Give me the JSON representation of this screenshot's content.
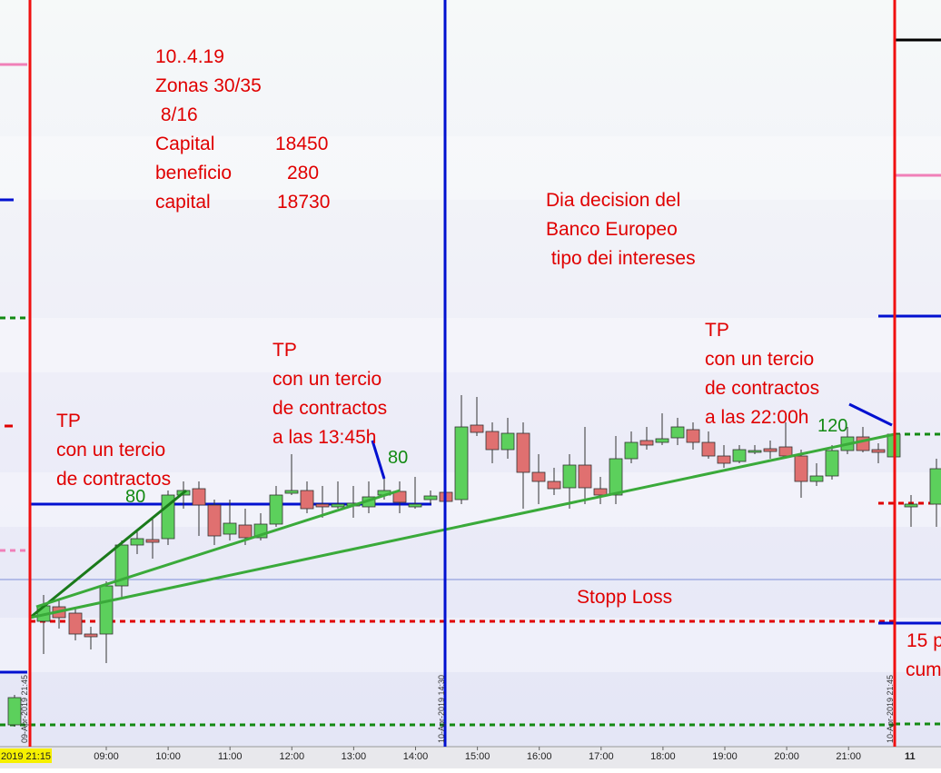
{
  "notes": {
    "date": "10..4.19",
    "zones": "Zonas 30/35",
    "hours": " 8/16",
    "rows": [
      {
        "label": "Capital",
        "value": "18450"
      },
      {
        "label": "beneficio",
        "value": "280"
      },
      {
        "label": "capital",
        "value": "18730"
      }
    ]
  },
  "event": [
    "Dia decision del",
    "Banco Europeo",
    " tipo dei intereses"
  ],
  "tp1": [
    "TP",
    "con un tercio",
    "de contractos"
  ],
  "tp2": [
    "TP",
    "con un tercio",
    "de contractos",
    "a las 13:45h"
  ],
  "tp3": [
    "TP",
    "con un tercio",
    "de contractos",
    "a las 22:00h"
  ],
  "profits": [
    "80",
    "80",
    "120"
  ],
  "stop_loss": "Stopp Loss",
  "cut_note": [
    "15 p",
    "cum"
  ],
  "session_marks": [
    "09-Apr-2019 21:45",
    "10-Apr-2019 14:30",
    "10-Apr-2019 21:45"
  ],
  "x_axis": {
    "current": "2019 21:15",
    "labels": [
      "09:00",
      "10:00",
      "11:00",
      "12:00",
      "13:00",
      "14:00",
      "15:00",
      "16:00",
      "17:00",
      "18:00",
      "19:00",
      "20:00",
      "21:00"
    ],
    "next_day": "11"
  }
}
